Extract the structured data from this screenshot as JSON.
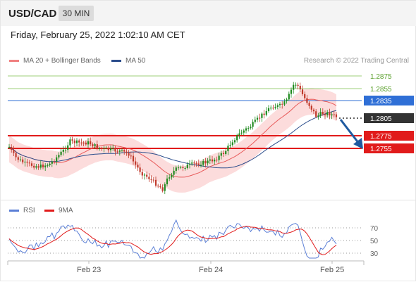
{
  "header": {
    "pair": "USD/CAD",
    "timeframe": "30 MIN"
  },
  "datetime": "Friday, February 25, 2022 1:02:10 AM CET",
  "legend": [
    {
      "label": "MA 20 + Bollinger Bands",
      "color": "#f08080"
    },
    {
      "label": "MA 50",
      "color": "#2b4d8c"
    }
  ],
  "credit": "Research © 2022 Trading Central",
  "levels": [
    {
      "value": "1.2875",
      "type": "resistance-minor",
      "color": "#5aa02c"
    },
    {
      "value": "1.2855",
      "type": "resistance-minor",
      "color": "#5aa02c"
    },
    {
      "value": "1.2835",
      "type": "pivot",
      "color": "#2f6fd6"
    },
    {
      "value": "1.2805",
      "type": "last-price",
      "color": "#333333"
    },
    {
      "value": "1.2775",
      "type": "support",
      "color": "#e11b1b"
    },
    {
      "value": "1.2755",
      "type": "support",
      "color": "#e11b1b"
    }
  ],
  "rsi": {
    "legend": [
      {
        "label": "RSI",
        "color": "#5b7fd6"
      },
      {
        "label": "9MA",
        "color": "#e11b1b"
      }
    ],
    "levels": [
      "70",
      "50",
      "30"
    ]
  },
  "xaxis": [
    "Feb 23",
    "Feb 24",
    "Feb 25"
  ],
  "colors": {
    "up": "#1f8a1f",
    "down": "#c0392b",
    "band": "#fbd3d3"
  }
}
